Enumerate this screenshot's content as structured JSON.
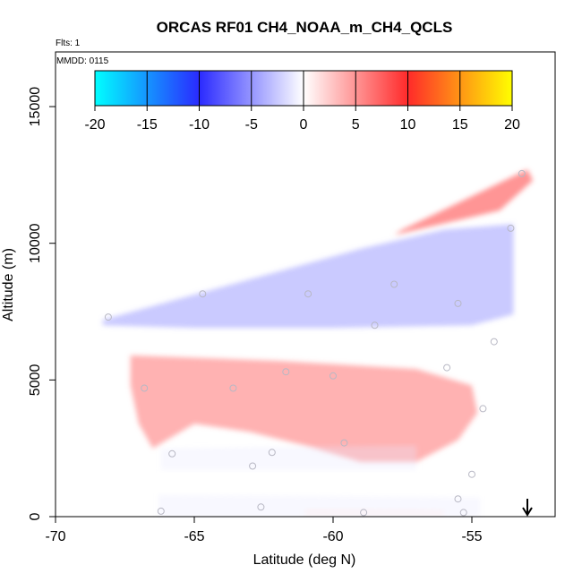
{
  "chart_data": {
    "type": "heatmap",
    "title": "ORCAS RF01 CH4_NOAA_m_CH4_QCLS",
    "xlabel": "Latitude (deg N)",
    "ylabel": "Altitude (m)",
    "xlim": [
      -70,
      -52
    ],
    "ylim": [
      0,
      17000
    ],
    "x_ticks": [
      -70,
      -65,
      -60,
      -55
    ],
    "x_tick_labels": [
      "-70",
      "-65",
      "-60",
      "-55"
    ],
    "y_ticks": [
      0,
      5000,
      10000,
      15000
    ],
    "y_tick_labels": [
      "0",
      "5000",
      "10000",
      "15000"
    ],
    "flights_note": "Flts: 1",
    "date_note": "MMDD: 0115",
    "colorbar": {
      "range": [
        -20,
        20
      ],
      "ticks": [
        -20,
        -15,
        -10,
        -5,
        0,
        5,
        10,
        15,
        20
      ],
      "tick_labels": [
        "-20",
        "-15",
        "-10",
        "-5",
        "0",
        "5",
        "10",
        "15",
        "20"
      ],
      "stops": [
        {
          "value": -20,
          "color": "#00ffff"
        },
        {
          "value": -10,
          "color": "#2a2aff"
        },
        {
          "value": 0,
          "color": "#ffffff"
        },
        {
          "value": 10,
          "color": "#ff2a2a"
        },
        {
          "value": 20,
          "color": "#ffff00"
        }
      ]
    },
    "regions": [
      {
        "name": "upper red band",
        "value": 6,
        "polygon": [
          [
            -57.5,
            10500
          ],
          [
            -53,
            12700
          ],
          [
            -52.8,
            12300
          ],
          [
            -54,
            11200
          ],
          [
            -57.8,
            10300
          ]
        ]
      },
      {
        "name": "upper blue region",
        "value": -4,
        "polygon": [
          [
            -68.3,
            7200
          ],
          [
            -59,
            9800
          ],
          [
            -56,
            10500
          ],
          [
            -53.5,
            10700
          ],
          [
            -53.5,
            7400
          ],
          [
            -55,
            7000
          ],
          [
            -60,
            6900
          ],
          [
            -65,
            6900
          ],
          [
            -68.3,
            7000
          ]
        ]
      },
      {
        "name": "mid red region",
        "value": 5,
        "polygon": [
          [
            -67.3,
            5900
          ],
          [
            -62,
            5700
          ],
          [
            -57,
            5400
          ],
          [
            -55,
            4800
          ],
          [
            -54.8,
            3800
          ],
          [
            -55.5,
            2800
          ],
          [
            -57,
            2000
          ],
          [
            -59,
            2000
          ],
          [
            -61,
            2600
          ],
          [
            -63,
            3100
          ],
          [
            -65,
            3400
          ],
          [
            -66.5,
            2500
          ],
          [
            -67,
            3400
          ],
          [
            -67.3,
            4800
          ]
        ]
      },
      {
        "name": "low faint blue band",
        "value": -1,
        "polygon": [
          [
            -66.2,
            2500
          ],
          [
            -57,
            2600
          ],
          [
            -57,
            1700
          ],
          [
            -66.2,
            1700
          ]
        ]
      },
      {
        "name": "near-surface faint blue band",
        "value": -1,
        "polygon": [
          [
            -66.3,
            800
          ],
          [
            -54.7,
            700
          ],
          [
            -54.7,
            0
          ],
          [
            -66.3,
            0
          ]
        ]
      },
      {
        "name": "surface faint red patch",
        "value": 1,
        "polygon": [
          [
            -61,
            300
          ],
          [
            -56,
            250
          ],
          [
            -56,
            0
          ],
          [
            -61,
            0
          ]
        ]
      }
    ],
    "flight_points": [
      {
        "lat": -68.1,
        "alt": 7300
      },
      {
        "lat": -64.7,
        "alt": 8150
      },
      {
        "lat": -60.9,
        "alt": 8150
      },
      {
        "lat": -57.8,
        "alt": 8500
      },
      {
        "lat": -55.5,
        "alt": 7800
      },
      {
        "lat": -53.6,
        "alt": 10550
      },
      {
        "lat": -53.2,
        "alt": 12550
      },
      {
        "lat": -58.5,
        "alt": 7000
      },
      {
        "lat": -54.2,
        "alt": 6400
      },
      {
        "lat": -55.9,
        "alt": 5450
      },
      {
        "lat": -61.7,
        "alt": 5300
      },
      {
        "lat": -60,
        "alt": 5150
      },
      {
        "lat": -63.6,
        "alt": 4700
      },
      {
        "lat": -66.8,
        "alt": 4700
      },
      {
        "lat": -54.6,
        "alt": 3950
      },
      {
        "lat": -59.6,
        "alt": 2700
      },
      {
        "lat": -62.2,
        "alt": 2350
      },
      {
        "lat": -65.8,
        "alt": 2300
      },
      {
        "lat": -62.9,
        "alt": 1850
      },
      {
        "lat": -55,
        "alt": 1550
      },
      {
        "lat": -55.5,
        "alt": 650
      },
      {
        "lat": -62.6,
        "alt": 350
      },
      {
        "lat": -66.2,
        "alt": 200
      },
      {
        "lat": -58.9,
        "alt": 150
      },
      {
        "lat": -55.3,
        "alt": 150
      }
    ],
    "arrow_marker": {
      "lat": -53,
      "direction": "down"
    }
  }
}
